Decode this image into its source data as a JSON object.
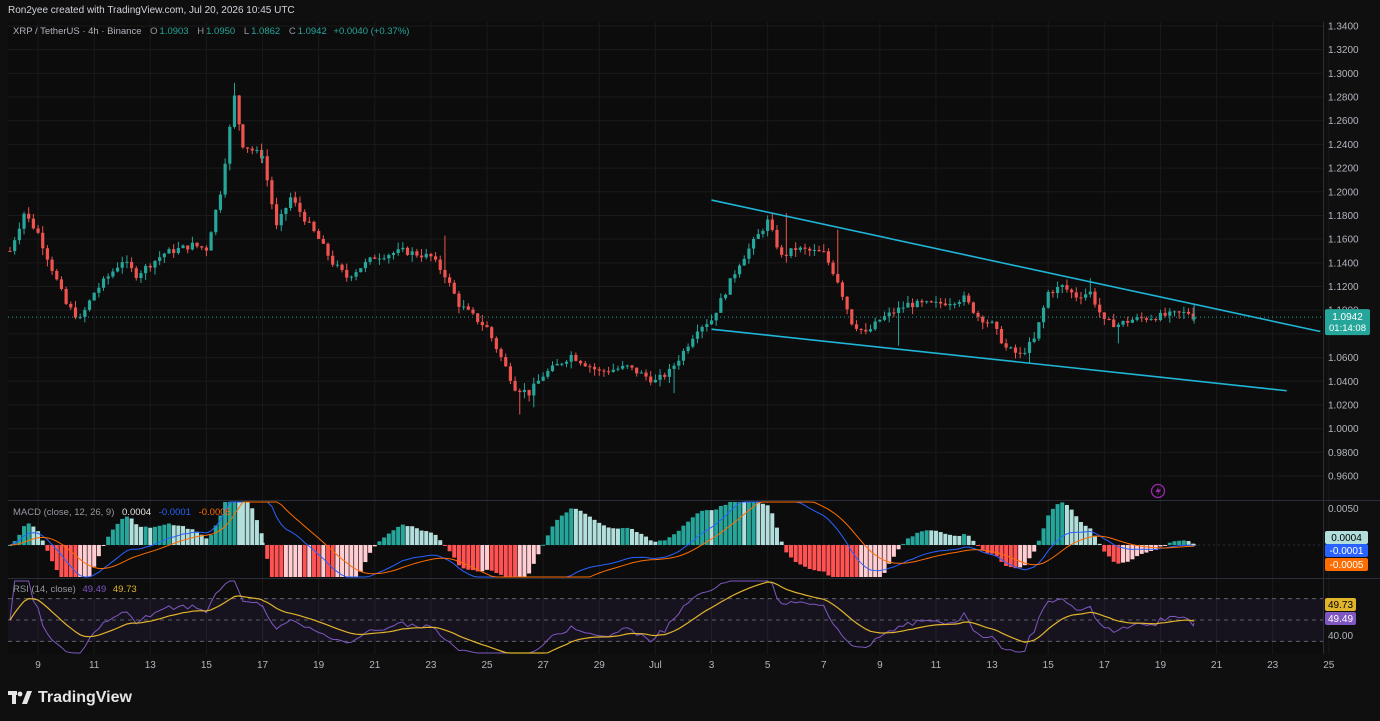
{
  "header": {
    "credit": "Ron2yee created with TradingView.com, Jul 20, 2026 10:45 UTC"
  },
  "symbol": {
    "name": "XRP / TetherUS · 4h · Binance",
    "o_label": "O",
    "o": "1.0903",
    "h_label": "H",
    "h": "1.0950",
    "l_label": "L",
    "l": "1.0862",
    "c_label": "C",
    "c": "1.0942",
    "change": "+0.0040 (+0.37%)"
  },
  "price_axis": {
    "current_price": "1.0942",
    "countdown": "01:14:08"
  },
  "macd_legend": {
    "title": "MACD (close, 12, 26, 9)",
    "hist": "0.0004",
    "macd": "-0.0001",
    "signal": "-0.0005"
  },
  "macd_axis": {
    "top_tick": "0.0050",
    "hist_tag": "0.0004",
    "macd_tag": "-0.0001",
    "signal_tag": "-0.0005"
  },
  "rsi_legend": {
    "title": "RSI (14, close)",
    "rsi": "49.49",
    "ma": "49.73"
  },
  "rsi_axis": {
    "ma_tag": "49.73",
    "rsi_tag": "49.49",
    "tick_40": "40.00"
  },
  "brand": {
    "name": "TradingView"
  },
  "colors": {
    "background": "#0c0c0c",
    "up": "#26a69a",
    "down": "#ef5350",
    "trendline": "#1fb5d6",
    "macd": "#2962ff",
    "signal": "#ff6d00",
    "rsi": "#7e57c2",
    "rsi_ma": "#e0b42b"
  },
  "chart_data": [
    {
      "type": "candlestick",
      "title": "XRP / TetherUS · 4h · Binance",
      "ylim": [
        0.94,
        1.34
      ],
      "y_ticks": [
        "1.3400",
        "1.3200",
        "1.3000",
        "1.2800",
        "1.2600",
        "1.2400",
        "1.2200",
        "1.2000",
        "1.1800",
        "1.1600",
        "1.1400",
        "1.1200",
        "1.1000",
        "1.0800",
        "1.0600",
        "1.0400",
        "1.0200",
        "1.0000",
        "0.9800",
        "0.9600"
      ],
      "x_tick_labels": [
        "9",
        "11",
        "13",
        "15",
        "17",
        "19",
        "21",
        "23",
        "25",
        "27",
        "29",
        "Jul",
        "3",
        "5",
        "7",
        "9",
        "11",
        "13",
        "15",
        "17",
        "19",
        "21",
        "23",
        "25"
      ],
      "anchors": [
        [
          "Jun 8",
          1.15
        ],
        [
          "Jun 8.5",
          1.182
        ],
        [
          "Jun 9",
          1.165
        ],
        [
          "Jun 10",
          1.105
        ],
        [
          "Jun 10.5",
          1.092
        ],
        [
          "Jun 11",
          1.115
        ],
        [
          "Jun 12",
          1.142
        ],
        [
          "Jun 12.5",
          1.13
        ],
        [
          "Jun 13.5",
          1.148
        ],
        [
          "Jun 14.5",
          1.155
        ],
        [
          "Jun 15",
          1.152
        ],
        [
          "Jun 15.5",
          1.2
        ],
        [
          "Jun 16",
          1.28
        ],
        [
          "Jun 16.3",
          1.24
        ],
        [
          "Jun 17",
          1.23
        ],
        [
          "Jun 17.5",
          1.17
        ],
        [
          "Jun 18",
          1.195
        ],
        [
          "Jun 19",
          1.16
        ],
        [
          "Jun 19.5",
          1.14
        ],
        [
          "Jun 20",
          1.128
        ],
        [
          "Jun 21",
          1.145
        ],
        [
          "Jun 22",
          1.15
        ],
        [
          "Jun 23",
          1.145
        ],
        [
          "Jun 23.5",
          1.13
        ],
        [
          "Jun 24",
          1.105
        ],
        [
          "Jun 25",
          1.085
        ],
        [
          "Jun 25.5",
          1.06
        ],
        [
          "Jun 26",
          1.035
        ],
        [
          "Jun 26.5",
          1.03
        ],
        [
          "Jun 27",
          1.045
        ],
        [
          "Jun 28",
          1.062
        ],
        [
          "Jun 29",
          1.048
        ],
        [
          "Jun 30",
          1.052
        ],
        [
          "Jul 1",
          1.04
        ],
        [
          "Jul 1.5",
          1.048
        ],
        [
          "Jul 2",
          1.065
        ],
        [
          "Jul 2.5",
          1.085
        ],
        [
          "Jul 3",
          1.092
        ],
        [
          "Jul 4",
          1.14
        ],
        [
          "Jul 5",
          1.175
        ],
        [
          "Jul 5.5",
          1.145
        ],
        [
          "Jul 6",
          1.152
        ],
        [
          "Jul 7",
          1.148
        ],
        [
          "Jul 7.5",
          1.125
        ],
        [
          "Jul 8",
          1.09
        ],
        [
          "Jul 8.5",
          1.08
        ],
        [
          "Jul 9",
          1.092
        ],
        [
          "Jul 10",
          1.105
        ],
        [
          "Jul 11",
          1.105
        ],
        [
          "Jul 12",
          1.11
        ],
        [
          "Jul 12.5",
          1.095
        ],
        [
          "Jul 13",
          1.088
        ],
        [
          "Jul 13.5",
          1.068
        ],
        [
          "Jul 14",
          1.062
        ],
        [
          "Jul 14.5",
          1.075
        ],
        [
          "Jul 15",
          1.115
        ],
        [
          "Jul 15.5",
          1.12
        ],
        [
          "Jul 16",
          1.112
        ],
        [
          "Jul 16.5",
          1.115
        ],
        [
          "Jul 17",
          1.09
        ],
        [
          "Jul 17.5",
          1.088
        ],
        [
          "Jul 18",
          1.092
        ],
        [
          "Jul 19",
          1.095
        ],
        [
          "Jul 20",
          1.098
        ],
        [
          "Jul 20.2",
          1.094
        ]
      ],
      "last_close": 1.0942,
      "annotations": {
        "trendline_upper": [
          [
            "Jul 3",
            1.193
          ],
          [
            "Jul 24.7",
            1.082
          ]
        ],
        "trendline_lower": [
          [
            "Jul 3",
            1.084
          ],
          [
            "Jul 23.5",
            1.032
          ]
        ]
      }
    },
    {
      "type": "bar",
      "title": "MACD (close, 12, 26, 9)",
      "series": [
        {
          "name": "hist",
          "last": 0.0004
        },
        {
          "name": "macd",
          "last": -0.0001
        },
        {
          "name": "signal",
          "last": -0.0005
        }
      ]
    },
    {
      "type": "line",
      "title": "RSI (14, close)",
      "ylim": [
        20,
        80
      ],
      "bands": [
        30,
        50,
        70
      ],
      "series": [
        {
          "name": "rsi",
          "last": 49.49
        },
        {
          "name": "ma",
          "last": 49.73
        }
      ]
    }
  ]
}
